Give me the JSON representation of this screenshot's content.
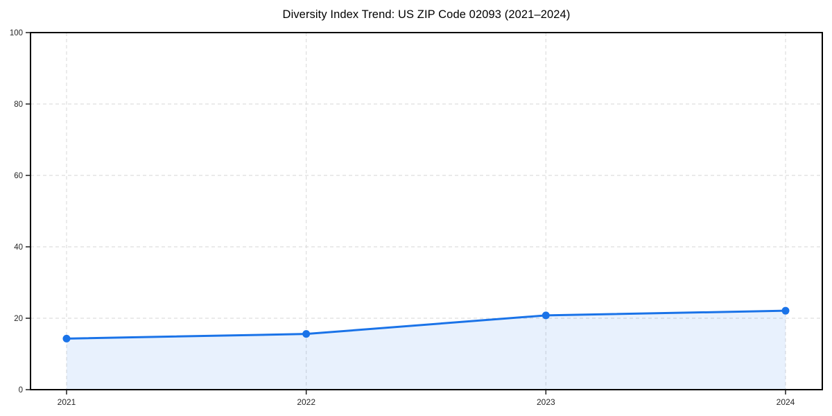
{
  "page": {
    "background": "#ffffff"
  },
  "chart_data": {
    "type": "line",
    "title": "Diversity Index Trend: US ZIP Code 02093 (2021–2024)",
    "categories": [
      "2021",
      "2022",
      "2023",
      "2024"
    ],
    "series": [
      {
        "name": "Diversity Index",
        "values": [
          14.3,
          15.6,
          20.8,
          22.1
        ]
      }
    ],
    "area_fill": true,
    "marker": "circle",
    "xlabel": "",
    "ylabel": "",
    "ylim": [
      0,
      100
    ],
    "yticks": [
      0,
      20,
      40,
      60,
      80,
      100
    ],
    "grid": "dashed",
    "legend_position": "none",
    "colors": {
      "line": "#1a73e8",
      "marker": "#1a73e8",
      "area": "rgba(26,115,232,0.10)",
      "grid": "#dedede",
      "spine": "#000000",
      "title_text": "#000000",
      "tick_text": "#262626",
      "tick_mark": "#1a1a1a"
    }
  }
}
